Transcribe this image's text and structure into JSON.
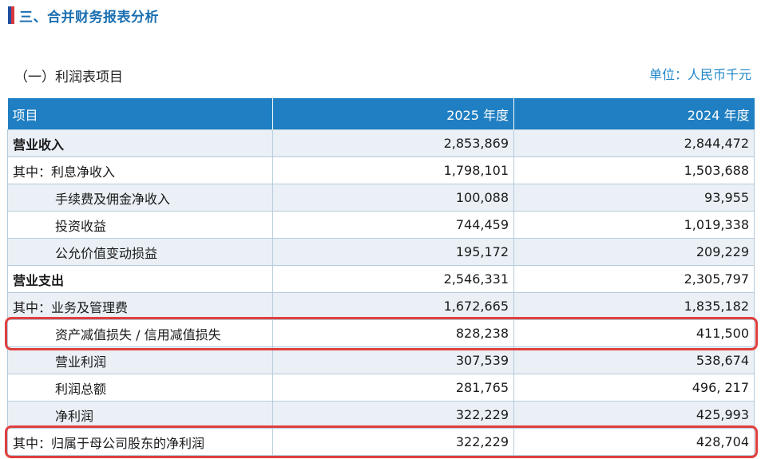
{
  "section": {
    "title": "三、合并财务报表分析",
    "bar_colors": [
      "#1f4fa0",
      "#d9363e"
    ]
  },
  "subsection": {
    "title": "（一）利润表项目",
    "unit": "单位：人民币千元"
  },
  "table": {
    "headers": [
      "项目",
      "2025 年度",
      "2024 年度"
    ],
    "rows": [
      {
        "label": "营业收入",
        "v2025": "2,853,869",
        "v2024": "2,844,472",
        "style": "bold"
      },
      {
        "label": "其中：利息净收入",
        "v2025": "1,798,101",
        "v2024": "1,503,688",
        "style": "ind1"
      },
      {
        "label": "手续费及佣金净收入",
        "v2025": "100,088",
        "v2024": "93,955",
        "style": "ind2"
      },
      {
        "label": "投资收益",
        "v2025": "744,459",
        "v2024": "1,019,338",
        "style": "ind2"
      },
      {
        "label": "公允价值变动损益",
        "v2025": "195,172",
        "v2024": "209,229",
        "style": "ind2"
      },
      {
        "label": "营业支出",
        "v2025": "2,546,331",
        "v2024": "2,305,797",
        "style": "bold"
      },
      {
        "label": "其中：业务及管理费",
        "v2025": "1,672,665",
        "v2024": "1,835,182",
        "style": "ind1"
      },
      {
        "label": "资产减值损失 / 信用减值损失",
        "v2025": "828,238",
        "v2024": "411,500",
        "style": "ind2",
        "highlighted": true
      },
      {
        "label": "营业利润",
        "v2025": "307,539",
        "v2024": "538,674",
        "style": "ind2"
      },
      {
        "label": "利润总额",
        "v2025": "281,765",
        "v2024": "496, 217",
        "style": "ind2"
      },
      {
        "label": "净利润",
        "v2025": "322,229",
        "v2024": "425,993",
        "style": "ind2"
      },
      {
        "label": "其中：归属于母公司股东的净利润",
        "v2025": "322,229",
        "v2024": "428,704",
        "style": "ind1",
        "highlighted": true
      }
    ],
    "header_color": "#1f7fc2",
    "row_shade_color": "#eaf0f6",
    "highlight_color": "#e0403e"
  }
}
